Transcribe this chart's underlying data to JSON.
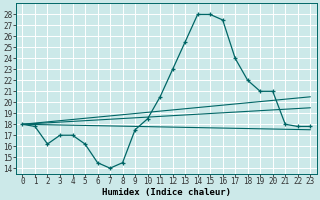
{
  "xlabel": "Humidex (Indice chaleur)",
  "bg_color": "#cce9e9",
  "grid_color": "#ffffff",
  "line_color": "#006666",
  "xlim": [
    -0.5,
    23.5
  ],
  "ylim": [
    13.5,
    29.0
  ],
  "xticks": [
    0,
    1,
    2,
    3,
    4,
    5,
    6,
    7,
    8,
    9,
    10,
    11,
    12,
    13,
    14,
    15,
    16,
    17,
    18,
    19,
    20,
    21,
    22,
    23
  ],
  "yticks": [
    14,
    15,
    16,
    17,
    18,
    19,
    20,
    21,
    22,
    23,
    24,
    25,
    26,
    27,
    28
  ],
  "series_main": {
    "x": [
      0,
      1,
      2,
      3,
      4,
      5,
      6,
      7,
      8,
      9,
      10,
      11,
      12,
      13,
      14,
      15,
      16,
      17,
      18,
      19,
      20,
      21,
      22,
      23
    ],
    "y": [
      18,
      17.8,
      16.2,
      17.0,
      17.0,
      16.2,
      14.5,
      14.0,
      14.5,
      17.5,
      18.5,
      20.5,
      23.0,
      25.5,
      28.0,
      28.0,
      27.5,
      24.0,
      22.0,
      21.0,
      21.0,
      18.0,
      17.8,
      17.8
    ]
  },
  "series_lines": [
    {
      "x": [
        0,
        23
      ],
      "y": [
        18.0,
        17.5
      ]
    },
    {
      "x": [
        0,
        23
      ],
      "y": [
        18.0,
        20.5
      ]
    },
    {
      "x": [
        0,
        23
      ],
      "y": [
        18.0,
        19.5
      ]
    }
  ],
  "tick_fontsize": 5.5,
  "xlabel_fontsize": 6.5,
  "xlabel_fontweight": "bold"
}
